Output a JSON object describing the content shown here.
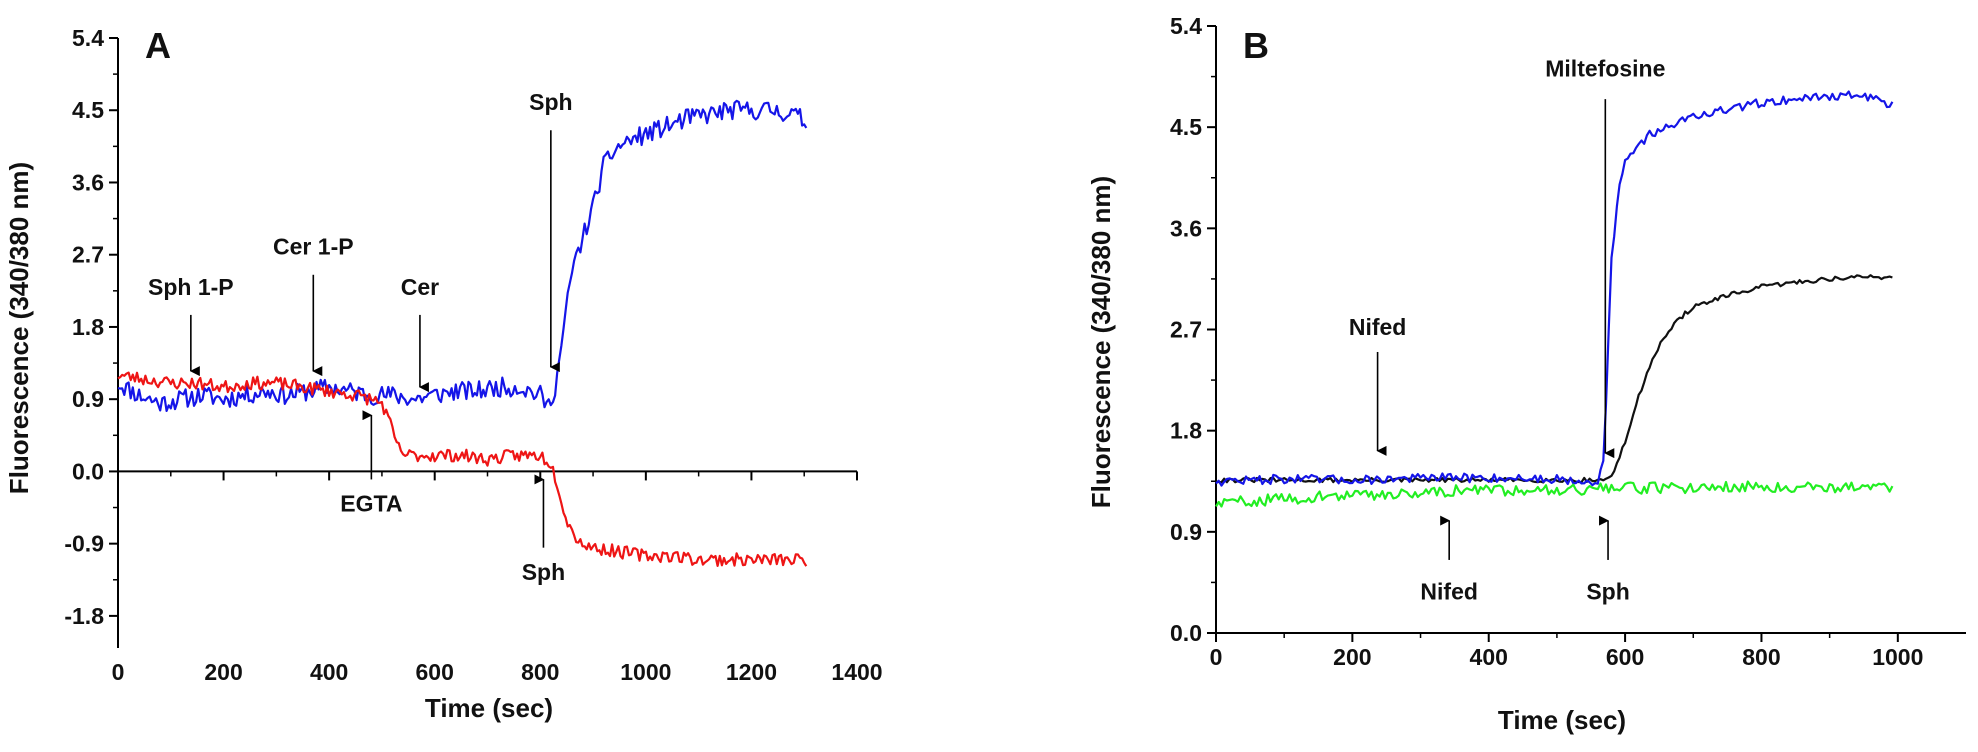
{
  "colors": {
    "blue": "#1515e8",
    "red": "#ee1515",
    "black": "#111111",
    "green": "#22ee22",
    "axis": "#000000"
  },
  "chart_data": [
    {
      "type": "line",
      "panel_label": "A",
      "xlabel": "Time (sec)",
      "ylabel": "Fluorescence (340/380 nm)",
      "xlim": [
        0,
        1400
      ],
      "ylim": [
        -2.2,
        5.4
      ],
      "x_ticks": [
        0,
        200,
        400,
        600,
        800,
        1000,
        1200,
        1400
      ],
      "y_ticks": [
        -1.8,
        -0.9,
        0.0,
        0.9,
        1.8,
        2.7,
        3.6,
        4.5,
        5.4
      ],
      "y_tick_labels": [
        "-1.8",
        "-0.9",
        "0.0",
        "0.9",
        "1.8",
        "2.7",
        "3.6",
        "4.5",
        "5.4"
      ],
      "series": [
        {
          "color_key": "blue",
          "x": [
            0,
            40,
            80,
            120,
            160,
            200,
            240,
            280,
            320,
            360,
            400,
            440,
            480,
            520,
            560,
            600,
            640,
            680,
            720,
            760,
            800,
            815,
            830,
            845,
            860,
            880,
            900,
            920,
            940,
            960,
            1000,
            1040,
            1080,
            1120,
            1160,
            1200,
            1240,
            1280,
            1305
          ],
          "y": [
            1.1,
            0.95,
            0.85,
            0.9,
            0.95,
            0.9,
            0.95,
            1.0,
            0.95,
            1.0,
            1.05,
            1.0,
            0.95,
            0.95,
            0.9,
            0.95,
            1.0,
            1.0,
            1.05,
            1.05,
            0.95,
            0.8,
            1.1,
            1.8,
            2.5,
            2.9,
            3.3,
            3.8,
            4.0,
            4.1,
            4.2,
            4.3,
            4.4,
            4.45,
            4.5,
            4.5,
            4.5,
            4.45,
            4.35
          ],
          "noise": 0.12,
          "seed": 11
        },
        {
          "color_key": "red",
          "x": [
            0,
            50,
            100,
            150,
            200,
            250,
            300,
            350,
            400,
            450,
            480,
            500,
            515,
            530,
            545,
            560,
            600,
            650,
            700,
            750,
            800,
            820,
            835,
            845,
            860,
            880,
            900,
            950,
            1000,
            1050,
            1100,
            1150,
            1200,
            1250,
            1305
          ],
          "y": [
            1.2,
            1.15,
            1.1,
            1.1,
            1.05,
            1.1,
            1.1,
            1.05,
            1.0,
            0.95,
            0.9,
            0.85,
            0.6,
            0.3,
            0.2,
            0.2,
            0.2,
            0.2,
            0.15,
            0.2,
            0.2,
            0.1,
            -0.2,
            -0.5,
            -0.75,
            -0.9,
            -0.95,
            -1.0,
            -1.05,
            -1.05,
            -1.1,
            -1.1,
            -1.1,
            -1.1,
            -1.1
          ],
          "noise": 0.08,
          "seed": 23
        }
      ],
      "annotations": [
        {
          "text": "Sph 1-P",
          "x": 138,
          "tip": 1.25,
          "tail": 1.95,
          "label_y": 2.2,
          "dir": "down"
        },
        {
          "text": "Cer 1-P",
          "x": 370,
          "tip": 1.25,
          "tail": 2.45,
          "label_y": 2.7,
          "dir": "down"
        },
        {
          "text": "Cer",
          "x": 572,
          "tip": 1.05,
          "tail": 1.95,
          "label_y": 2.2,
          "dir": "down"
        },
        {
          "text": "Sph",
          "x": 820,
          "tip": 1.3,
          "tail": 4.25,
          "label_y": 4.5,
          "dir": "down"
        },
        {
          "text": "EGTA",
          "x": 480,
          "tip": 0.7,
          "tail": -0.1,
          "label_y": -0.5,
          "dir": "up"
        },
        {
          "text": "Sph",
          "x": 806,
          "tip": -0.1,
          "tail": -0.95,
          "label_y": -1.35,
          "dir": "up"
        }
      ]
    },
    {
      "type": "line",
      "panel_label": "B",
      "xlabel": "Time (sec)",
      "ylabel": "Fluorescence (340/380 nm)",
      "xlim": [
        0,
        1100
      ],
      "ylim": [
        0.0,
        5.4
      ],
      "x_ticks": [
        0,
        200,
        400,
        600,
        800,
        1000
      ],
      "y_ticks": [
        0.0,
        0.9,
        1.8,
        2.7,
        3.6,
        4.5,
        5.4
      ],
      "y_tick_labels": [
        "0.0",
        "0.9",
        "1.8",
        "2.7",
        "3.6",
        "4.5",
        "5.4"
      ],
      "series": [
        {
          "color_key": "black",
          "x": [
            0,
            100,
            200,
            300,
            400,
            500,
            560,
            575,
            585,
            600,
            620,
            640,
            660,
            680,
            700,
            750,
            800,
            850,
            900,
            950,
            995
          ],
          "y": [
            1.36,
            1.36,
            1.36,
            1.36,
            1.36,
            1.36,
            1.36,
            1.37,
            1.45,
            1.7,
            2.1,
            2.45,
            2.65,
            2.8,
            2.9,
            3.0,
            3.08,
            3.12,
            3.15,
            3.17,
            3.16
          ],
          "noise": 0.02,
          "seed": 31
        },
        {
          "color_key": "blue",
          "x": [
            0,
            100,
            200,
            300,
            400,
            500,
            560,
            568,
            575,
            580,
            590,
            600,
            620,
            640,
            660,
            700,
            750,
            800,
            850,
            900,
            950,
            995
          ],
          "y": [
            1.35,
            1.37,
            1.36,
            1.38,
            1.38,
            1.37,
            1.35,
            1.5,
            2.5,
            3.3,
            3.9,
            4.2,
            4.35,
            4.45,
            4.5,
            4.6,
            4.65,
            4.72,
            4.75,
            4.78,
            4.78,
            4.7
          ],
          "noise": 0.04,
          "seed": 47
        },
        {
          "color_key": "green",
          "x": [
            0,
            60,
            120,
            180,
            240,
            300,
            360,
            420,
            480,
            540,
            600,
            660,
            720,
            780,
            840,
            900,
            960,
            995
          ],
          "y": [
            1.15,
            1.18,
            1.2,
            1.22,
            1.23,
            1.25,
            1.27,
            1.27,
            1.28,
            1.28,
            1.29,
            1.29,
            1.3,
            1.3,
            1.3,
            1.3,
            1.3,
            1.29
          ],
          "noise": 0.05,
          "seed": 59
        }
      ],
      "annotations": [
        {
          "text": "Nifed",
          "x": 237,
          "tip": 1.62,
          "tail": 2.5,
          "label_y": 2.65,
          "dir": "down"
        },
        {
          "text": "Miltefosine",
          "x": 571,
          "tip": 1.6,
          "tail": 4.75,
          "label_y": 4.95,
          "dir": "down"
        },
        {
          "text": "Nifed",
          "x": 342,
          "tip": 1.0,
          "tail": 0.65,
          "label_y": 0.3,
          "dir": "up"
        },
        {
          "text": "Sph",
          "x": 575,
          "tip": 1.0,
          "tail": 0.65,
          "label_y": 0.3,
          "dir": "up"
        }
      ]
    }
  ]
}
